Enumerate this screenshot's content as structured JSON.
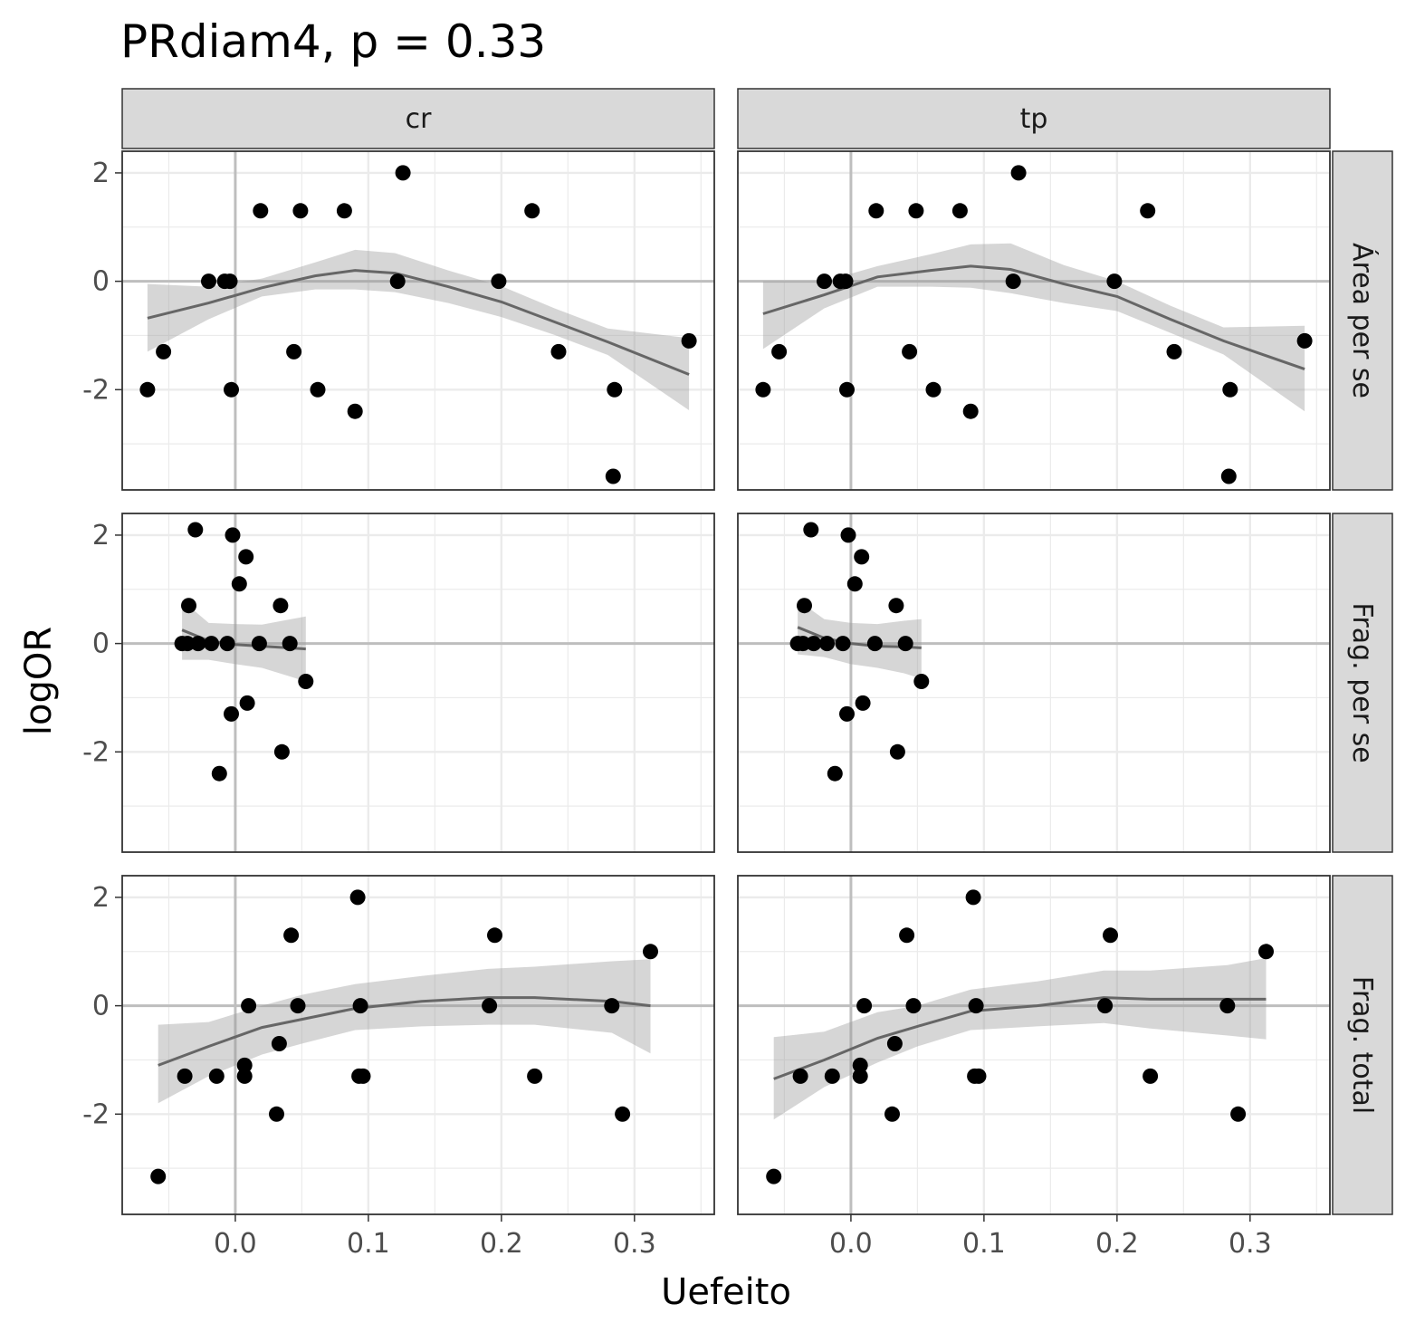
{
  "chart_data": {
    "type": "scatter",
    "title": "PRdiam4, p = 0.33",
    "xlabel": "Uefeito",
    "ylabel": "logOR",
    "xlim": [
      -0.085,
      0.36
    ],
    "ylim": [
      -3.85,
      2.4
    ],
    "x_ticks": [
      0.0,
      0.1,
      0.2,
      0.3
    ],
    "x_tick_labels": [
      "0.0",
      "0.1",
      "0.2",
      "0.3"
    ],
    "y_ticks": [
      -2,
      0,
      2
    ],
    "y_tick_labels": [
      "-2",
      "0",
      "2"
    ],
    "reference_lines": {
      "x": 0,
      "y": 0
    },
    "grid": true,
    "legend": "none",
    "colors": {
      "points": "#000000",
      "smooth_line": "#666666",
      "ribbon": "#d3d3d3",
      "strip_fill": "#d9d9d9"
    },
    "col_facets": [
      "cr",
      "tp"
    ],
    "row_facets": [
      "Área per se",
      "Frag. per se",
      "Frag. total"
    ],
    "panels": [
      {
        "col": "cr",
        "row": "Área per se",
        "points": [
          [
            -0.066,
            -2.0
          ],
          [
            -0.054,
            -1.3
          ],
          [
            -0.02,
            0.0
          ],
          [
            -0.008,
            0.0
          ],
          [
            -0.004,
            0.0
          ],
          [
            -0.003,
            -2.0
          ],
          [
            0.019,
            1.3
          ],
          [
            0.044,
            -1.3
          ],
          [
            0.049,
            1.3
          ],
          [
            0.062,
            -2.0
          ],
          [
            0.082,
            1.3
          ],
          [
            0.09,
            -2.4
          ],
          [
            0.122,
            0.0
          ],
          [
            0.126,
            2.0
          ],
          [
            0.198,
            0.0
          ],
          [
            0.223,
            1.3
          ],
          [
            0.243,
            -1.3
          ],
          [
            0.284,
            -3.6
          ],
          [
            0.285,
            -2.0
          ],
          [
            0.341,
            -1.1
          ]
        ],
        "smooth": [
          [
            -0.066,
            -0.68
          ],
          [
            -0.02,
            -0.4
          ],
          [
            0.02,
            -0.12
          ],
          [
            0.06,
            0.1
          ],
          [
            0.09,
            0.2
          ],
          [
            0.12,
            0.15
          ],
          [
            0.16,
            -0.1
          ],
          [
            0.2,
            -0.38
          ],
          [
            0.24,
            -0.75
          ],
          [
            0.28,
            -1.12
          ],
          [
            0.341,
            -1.72
          ]
        ],
        "ribbon_lower": [
          [
            -0.066,
            -1.3
          ],
          [
            -0.02,
            -0.7
          ],
          [
            0.02,
            -0.28
          ],
          [
            0.06,
            -0.15
          ],
          [
            0.09,
            -0.15
          ],
          [
            0.12,
            -0.2
          ],
          [
            0.16,
            -0.4
          ],
          [
            0.2,
            -0.66
          ],
          [
            0.24,
            -0.99
          ],
          [
            0.28,
            -1.36
          ],
          [
            0.341,
            -2.38
          ]
        ],
        "ribbon_upper": [
          [
            -0.066,
            -0.05
          ],
          [
            -0.02,
            -0.1
          ],
          [
            0.02,
            0.05
          ],
          [
            0.06,
            0.35
          ],
          [
            0.09,
            0.58
          ],
          [
            0.12,
            0.52
          ],
          [
            0.16,
            0.2
          ],
          [
            0.2,
            -0.09
          ],
          [
            0.24,
            -0.5
          ],
          [
            0.28,
            -0.87
          ],
          [
            0.341,
            -1.05
          ]
        ]
      },
      {
        "col": "tp",
        "row": "Área per se",
        "points": [
          [
            -0.066,
            -2.0
          ],
          [
            -0.054,
            -1.3
          ],
          [
            -0.02,
            0.0
          ],
          [
            -0.008,
            0.0
          ],
          [
            -0.004,
            0.0
          ],
          [
            -0.003,
            -2.0
          ],
          [
            0.019,
            1.3
          ],
          [
            0.044,
            -1.3
          ],
          [
            0.049,
            1.3
          ],
          [
            0.062,
            -2.0
          ],
          [
            0.082,
            1.3
          ],
          [
            0.09,
            -2.4
          ],
          [
            0.122,
            0.0
          ],
          [
            0.126,
            2.0
          ],
          [
            0.198,
            0.0
          ],
          [
            0.223,
            1.3
          ],
          [
            0.243,
            -1.3
          ],
          [
            0.284,
            -3.6
          ],
          [
            0.285,
            -2.0
          ],
          [
            0.341,
            -1.1
          ]
        ],
        "smooth": [
          [
            -0.066,
            -0.6
          ],
          [
            -0.02,
            -0.25
          ],
          [
            0.02,
            0.08
          ],
          [
            0.06,
            0.2
          ],
          [
            0.09,
            0.28
          ],
          [
            0.12,
            0.22
          ],
          [
            0.16,
            -0.05
          ],
          [
            0.2,
            -0.28
          ],
          [
            0.24,
            -0.7
          ],
          [
            0.28,
            -1.1
          ],
          [
            0.341,
            -1.62
          ]
        ],
        "ribbon_lower": [
          [
            -0.066,
            -1.25
          ],
          [
            -0.02,
            -0.5
          ],
          [
            0.02,
            -0.1
          ],
          [
            0.06,
            -0.1
          ],
          [
            0.09,
            -0.12
          ],
          [
            0.12,
            -0.22
          ],
          [
            0.16,
            -0.4
          ],
          [
            0.2,
            -0.55
          ],
          [
            0.24,
            -0.95
          ],
          [
            0.28,
            -1.35
          ],
          [
            0.341,
            -2.4
          ]
        ],
        "ribbon_upper": [
          [
            -0.066,
            0.0
          ],
          [
            -0.02,
            0.0
          ],
          [
            0.02,
            0.28
          ],
          [
            0.06,
            0.5
          ],
          [
            0.09,
            0.68
          ],
          [
            0.12,
            0.7
          ],
          [
            0.16,
            0.3
          ],
          [
            0.2,
            0.0
          ],
          [
            0.24,
            -0.45
          ],
          [
            0.28,
            -0.85
          ],
          [
            0.341,
            -0.82
          ]
        ]
      },
      {
        "col": "cr",
        "row": "Frag. per se",
        "points": [
          [
            -0.04,
            0.0
          ],
          [
            -0.036,
            0.0
          ],
          [
            -0.035,
            0.7
          ],
          [
            -0.03,
            2.1
          ],
          [
            -0.028,
            0.0
          ],
          [
            -0.018,
            0.0
          ],
          [
            -0.012,
            -2.4
          ],
          [
            -0.006,
            0.0
          ],
          [
            -0.003,
            -1.3
          ],
          [
            -0.002,
            2.0
          ],
          [
            0.003,
            1.1
          ],
          [
            0.008,
            1.6
          ],
          [
            0.009,
            -1.1
          ],
          [
            0.018,
            0.0
          ],
          [
            0.034,
            0.7
          ],
          [
            0.035,
            -2.0
          ],
          [
            0.041,
            0.0
          ],
          [
            0.053,
            -0.7
          ]
        ],
        "smooth": [
          [
            -0.04,
            0.25
          ],
          [
            -0.02,
            0.05
          ],
          [
            0.0,
            -0.02
          ],
          [
            0.02,
            -0.05
          ],
          [
            0.04,
            -0.08
          ],
          [
            0.053,
            -0.1
          ]
        ],
        "ribbon_lower": [
          [
            -0.04,
            -0.3
          ],
          [
            -0.02,
            -0.3
          ],
          [
            0.0,
            -0.38
          ],
          [
            0.02,
            -0.45
          ],
          [
            0.04,
            -0.6
          ],
          [
            0.053,
            -0.7
          ]
        ],
        "ribbon_upper": [
          [
            -0.04,
            0.8
          ],
          [
            -0.02,
            0.38
          ],
          [
            0.0,
            0.36
          ],
          [
            0.02,
            0.35
          ],
          [
            0.04,
            0.44
          ],
          [
            0.053,
            0.5
          ]
        ]
      },
      {
        "col": "tp",
        "row": "Frag. per se",
        "points": [
          [
            -0.04,
            0.0
          ],
          [
            -0.036,
            0.0
          ],
          [
            -0.035,
            0.7
          ],
          [
            -0.03,
            2.1
          ],
          [
            -0.028,
            0.0
          ],
          [
            -0.018,
            0.0
          ],
          [
            -0.012,
            -2.4
          ],
          [
            -0.006,
            0.0
          ],
          [
            -0.003,
            -1.3
          ],
          [
            -0.002,
            2.0
          ],
          [
            0.003,
            1.1
          ],
          [
            0.008,
            1.6
          ],
          [
            0.009,
            -1.1
          ],
          [
            0.018,
            0.0
          ],
          [
            0.034,
            0.7
          ],
          [
            0.035,
            -2.0
          ],
          [
            0.041,
            0.0
          ],
          [
            0.053,
            -0.7
          ]
        ],
        "smooth": [
          [
            -0.04,
            0.3
          ],
          [
            -0.02,
            0.1
          ],
          [
            0.0,
            0.0
          ],
          [
            0.02,
            -0.05
          ],
          [
            0.04,
            -0.06
          ],
          [
            0.053,
            -0.08
          ]
        ],
        "ribbon_lower": [
          [
            -0.04,
            -0.2
          ],
          [
            -0.02,
            -0.25
          ],
          [
            0.0,
            -0.38
          ],
          [
            0.02,
            -0.45
          ],
          [
            0.04,
            -0.55
          ],
          [
            0.053,
            -0.65
          ]
        ],
        "ribbon_upper": [
          [
            -0.04,
            0.8
          ],
          [
            -0.02,
            0.45
          ],
          [
            0.0,
            0.38
          ],
          [
            0.02,
            0.36
          ],
          [
            0.04,
            0.42
          ],
          [
            0.053,
            0.45
          ]
        ]
      },
      {
        "col": "cr",
        "row": "Frag. total",
        "points": [
          [
            -0.058,
            -3.15
          ],
          [
            -0.038,
            -1.3
          ],
          [
            -0.014,
            -1.3
          ],
          [
            0.007,
            -1.1
          ],
          [
            0.007,
            -1.3
          ],
          [
            0.01,
            0.0
          ],
          [
            0.031,
            -2.0
          ],
          [
            0.033,
            -0.7
          ],
          [
            0.042,
            1.3
          ],
          [
            0.047,
            0.0
          ],
          [
            0.092,
            2.0
          ],
          [
            0.093,
            -1.3
          ],
          [
            0.094,
            0.0
          ],
          [
            0.096,
            -1.3
          ],
          [
            0.191,
            0.0
          ],
          [
            0.195,
            1.3
          ],
          [
            0.225,
            -1.3
          ],
          [
            0.283,
            0.0
          ],
          [
            0.291,
            -2.0
          ],
          [
            0.312,
            1.0
          ]
        ],
        "smooth": [
          [
            -0.058,
            -1.1
          ],
          [
            -0.02,
            -0.75
          ],
          [
            0.02,
            -0.4
          ],
          [
            0.05,
            -0.25
          ],
          [
            0.09,
            -0.05
          ],
          [
            0.14,
            0.08
          ],
          [
            0.19,
            0.15
          ],
          [
            0.225,
            0.15
          ],
          [
            0.283,
            0.08
          ],
          [
            0.312,
            0.0
          ]
        ],
        "ribbon_lower": [
          [
            -0.058,
            -1.8
          ],
          [
            -0.02,
            -1.3
          ],
          [
            0.02,
            -0.9
          ],
          [
            0.05,
            -0.7
          ],
          [
            0.09,
            -0.45
          ],
          [
            0.14,
            -0.38
          ],
          [
            0.19,
            -0.35
          ],
          [
            0.225,
            -0.35
          ],
          [
            0.283,
            -0.5
          ],
          [
            0.312,
            -0.88
          ]
        ],
        "ribbon_upper": [
          [
            -0.058,
            -0.35
          ],
          [
            -0.02,
            -0.3
          ],
          [
            0.02,
            0.0
          ],
          [
            0.05,
            0.2
          ],
          [
            0.09,
            0.4
          ],
          [
            0.14,
            0.55
          ],
          [
            0.19,
            0.68
          ],
          [
            0.225,
            0.72
          ],
          [
            0.283,
            0.82
          ],
          [
            0.312,
            0.86
          ]
        ]
      },
      {
        "col": "tp",
        "row": "Frag. total",
        "points": [
          [
            -0.058,
            -3.15
          ],
          [
            -0.038,
            -1.3
          ],
          [
            -0.014,
            -1.3
          ],
          [
            0.007,
            -1.1
          ],
          [
            0.007,
            -1.3
          ],
          [
            0.01,
            0.0
          ],
          [
            0.031,
            -2.0
          ],
          [
            0.033,
            -0.7
          ],
          [
            0.042,
            1.3
          ],
          [
            0.047,
            0.0
          ],
          [
            0.092,
            2.0
          ],
          [
            0.093,
            -1.3
          ],
          [
            0.094,
            0.0
          ],
          [
            0.096,
            -1.3
          ],
          [
            0.191,
            0.0
          ],
          [
            0.195,
            1.3
          ],
          [
            0.225,
            -1.3
          ],
          [
            0.283,
            0.0
          ],
          [
            0.291,
            -2.0
          ],
          [
            0.312,
            1.0
          ]
        ],
        "smooth": [
          [
            -0.058,
            -1.35
          ],
          [
            -0.02,
            -1.0
          ],
          [
            0.02,
            -0.6
          ],
          [
            0.05,
            -0.38
          ],
          [
            0.09,
            -0.1
          ],
          [
            0.14,
            0.0
          ],
          [
            0.19,
            0.15
          ],
          [
            0.225,
            0.12
          ],
          [
            0.283,
            0.12
          ],
          [
            0.312,
            0.12
          ]
        ],
        "ribbon_lower": [
          [
            -0.058,
            -2.1
          ],
          [
            -0.02,
            -1.5
          ],
          [
            0.02,
            -1.05
          ],
          [
            0.05,
            -0.75
          ],
          [
            0.09,
            -0.45
          ],
          [
            0.14,
            -0.38
          ],
          [
            0.19,
            -0.32
          ],
          [
            0.225,
            -0.42
          ],
          [
            0.283,
            -0.55
          ],
          [
            0.312,
            -0.62
          ]
        ],
        "ribbon_upper": [
          [
            -0.058,
            -0.58
          ],
          [
            -0.02,
            -0.48
          ],
          [
            0.02,
            -0.12
          ],
          [
            0.05,
            0.0
          ],
          [
            0.09,
            0.3
          ],
          [
            0.14,
            0.45
          ],
          [
            0.19,
            0.65
          ],
          [
            0.225,
            0.65
          ],
          [
            0.283,
            0.75
          ],
          [
            0.312,
            0.88
          ]
        ]
      }
    ]
  }
}
